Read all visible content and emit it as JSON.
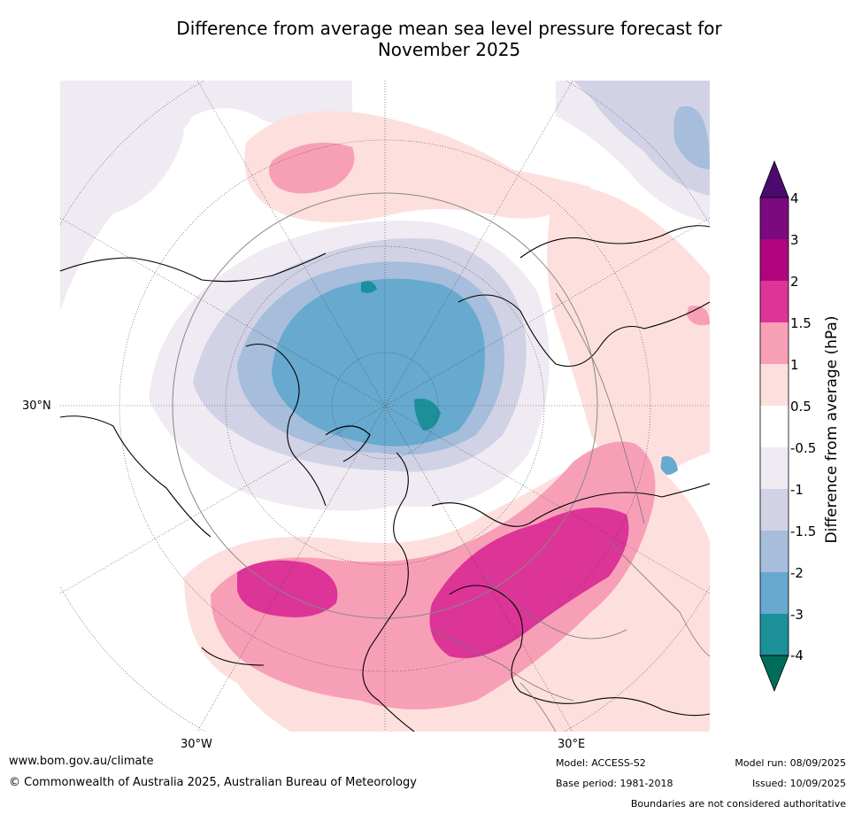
{
  "title_line1": "Difference from average mean sea level pressure forecast for",
  "title_line2": "November 2025",
  "map_labels": {
    "lat_30n": "30°N",
    "lon_30w": "30°W",
    "lon_30e": "30°E"
  },
  "colorbar": {
    "title": "Difference from average (hPa)",
    "ticks": [
      "4",
      "3",
      "2",
      "1.5",
      "1",
      "0.5",
      "-0.5",
      "-1",
      "-1.5",
      "-2",
      "-3",
      "-4"
    ],
    "colors": {
      "above_4": "#4b0a6e",
      "3_to_4": "#7b0a7e",
      "2_to_3": "#b0057e",
      "1_5_to_2": "#dd3497",
      "1_to_1_5": "#f89fb8",
      "0_5_to_1": "#fde0dd",
      "neutral": "#ffffff",
      "m1_to_m0_5": "#f0eaf3",
      "m1_5_to_m1": "#d1d2e6",
      "m2_to_m1_5": "#a6bddb",
      "m3_to_m2": "#67a9cf",
      "m4_to_m3": "#1c9099",
      "below_m4": "#016c59"
    }
  },
  "footer": {
    "website": "www.bom.gov.au/climate",
    "copyright": "© Commonwealth of Australia 2025, Australian Bureau of Meteorology",
    "model": "Model: ACCESS-S2",
    "base_period": "Base period: 1981-2018",
    "model_run": "Model run: 08/09/2025",
    "issued": "Issued: 10/09/2025",
    "disclaimer": "Boundaries are not considered authoritative"
  }
}
